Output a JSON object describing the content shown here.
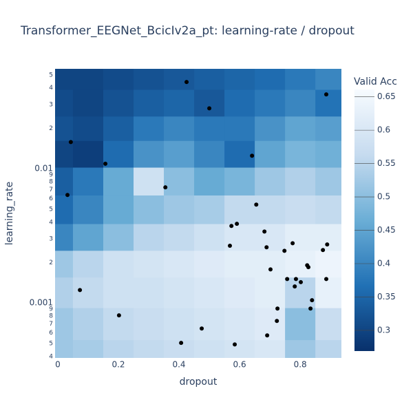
{
  "chart_data": {
    "type": "contour",
    "title": "Transformer_EEGNet_BcicIv2a_pt: learning-rate / dropout",
    "x_label": "dropout",
    "y_label": "learning_rate",
    "xlim": [
      -0.009,
      0.936
    ],
    "xticks": [
      0,
      0.2,
      0.4,
      0.6,
      0.8
    ],
    "ylim": [
      0.00039,
      0.0555
    ],
    "log_y": true,
    "yticks": [
      {
        "value": 0.0004,
        "label": "4"
      },
      {
        "value": 0.0005,
        "label": "5"
      },
      {
        "value": 0.0006,
        "label": "6"
      },
      {
        "value": 0.0007,
        "label": "7"
      },
      {
        "value": 0.0008,
        "label": "8"
      },
      {
        "value": 0.0009,
        "label": "9"
      },
      0.001,
      {
        "value": 0.002,
        "label": "2"
      },
      {
        "value": 0.003,
        "label": "3"
      },
      {
        "value": 0.004,
        "label": "4"
      },
      {
        "value": 0.005,
        "label": "5"
      },
      {
        "value": 0.006,
        "label": "6"
      },
      {
        "value": 0.007,
        "label": "7"
      },
      {
        "value": 0.008,
        "label": "8"
      },
      {
        "value": 0.009,
        "label": "9"
      },
      0.01,
      {
        "value": 0.02,
        "label": "2"
      },
      {
        "value": 0.03,
        "label": "3"
      },
      {
        "value": 0.04,
        "label": "4"
      },
      {
        "value": 0.05,
        "label": "5"
      }
    ],
    "z_x": [
      0,
      0.1,
      0.2,
      0.3,
      0.4,
      0.5,
      0.6,
      0.7,
      0.8,
      0.9
    ],
    "z_y": [
      0.05,
      0.03,
      0.02,
      0.013,
      0.008,
      0.005,
      0.003,
      0.002,
      0.0012,
      0.0007,
      0.0004
    ],
    "z": [
      [
        0.3,
        0.3,
        0.31,
        0.32,
        0.33,
        0.34,
        0.35,
        0.36,
        0.38,
        0.4
      ],
      [
        0.31,
        0.3,
        0.32,
        0.34,
        0.35,
        0.33,
        0.36,
        0.38,
        0.4,
        0.37
      ],
      [
        0.32,
        0.31,
        0.34,
        0.38,
        0.4,
        0.38,
        0.38,
        0.42,
        0.45,
        0.44
      ],
      [
        0.3,
        0.29,
        0.36,
        0.42,
        0.44,
        0.4,
        0.36,
        0.45,
        0.48,
        0.47
      ],
      [
        0.34,
        0.38,
        0.46,
        0.58,
        0.5,
        0.46,
        0.48,
        0.52,
        0.54,
        0.52
      ],
      [
        0.36,
        0.4,
        0.46,
        0.5,
        0.52,
        0.53,
        0.56,
        0.56,
        0.57,
        0.56
      ],
      [
        0.4,
        0.45,
        0.5,
        0.55,
        0.56,
        0.58,
        0.6,
        0.6,
        0.62,
        0.62
      ],
      [
        0.52,
        0.55,
        0.58,
        0.59,
        0.6,
        0.61,
        0.62,
        0.62,
        0.63,
        0.64
      ],
      [
        0.54,
        0.56,
        0.58,
        0.58,
        0.59,
        0.6,
        0.61,
        0.62,
        0.55,
        0.63
      ],
      [
        0.52,
        0.54,
        0.56,
        0.57,
        0.58,
        0.59,
        0.6,
        0.61,
        0.5,
        0.57
      ],
      [
        0.52,
        0.53,
        0.55,
        0.56,
        0.57,
        0.58,
        0.59,
        0.6,
        0.52,
        0.55
      ]
    ],
    "colorscale": [
      "#08306b",
      "#2171b5",
      "#6baed6",
      "#c6dbef",
      "#f7fbff"
    ],
    "colorbar_title": "Valid Acc",
    "zlim": [
      0.269,
      0.661
    ],
    "zticks": [
      0.3,
      0.35,
      0.4,
      0.45,
      0.5,
      0.55,
      0.6,
      0.65
    ],
    "points": {
      "color": "#000000",
      "x": [
        0.425,
        0.886,
        0.5,
        0.043,
        0.157,
        0.641,
        0.355,
        0.032,
        0.655,
        0.573,
        0.591,
        0.682,
        0.568,
        0.689,
        0.775,
        0.889,
        0.748,
        0.875,
        0.823,
        0.827,
        0.702,
        0.757,
        0.786,
        0.802,
        0.782,
        0.886,
        0.073,
        0.839,
        0.834,
        0.725,
        0.202,
        0.723,
        0.475,
        0.691,
        0.407,
        0.584
      ],
      "y": [
        0.0443,
        0.0358,
        0.0282,
        0.0158,
        0.0109,
        0.0125,
        0.00727,
        0.00638,
        0.00541,
        0.00375,
        0.00389,
        0.00341,
        0.00267,
        0.0026,
        0.00279,
        0.00273,
        0.00245,
        0.00248,
        0.00191,
        0.00185,
        0.00178,
        0.00151,
        0.00151,
        0.00143,
        0.00133,
        0.00151,
        0.00125,
        0.00105,
        0.00091,
        0.00091,
        0.00081,
        0.000736,
        0.000646,
        0.000574,
        0.000505,
        0.000492
      ]
    }
  }
}
